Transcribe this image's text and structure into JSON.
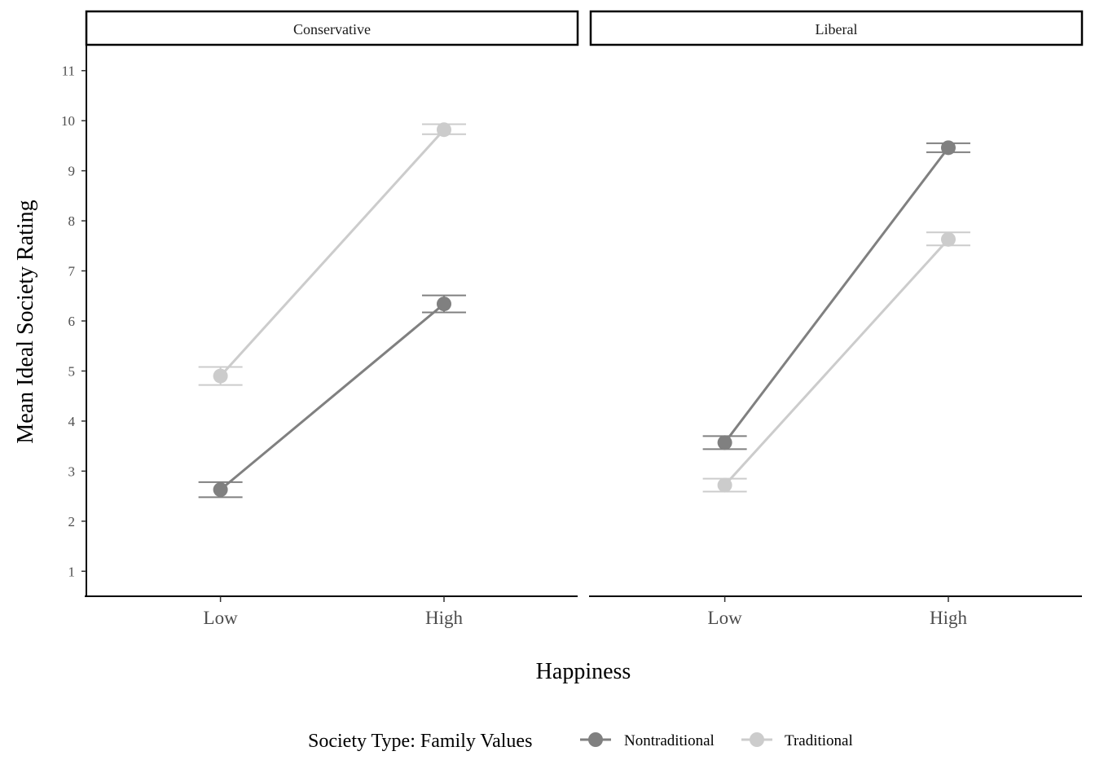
{
  "chart_data": {
    "type": "line",
    "xlabel": "Happiness",
    "ylabel": "Mean Ideal Society Rating",
    "categories": [
      "Low",
      "High"
    ],
    "ylim": [
      0.5,
      11.5
    ],
    "yticks": [
      1,
      2,
      3,
      4,
      5,
      6,
      7,
      8,
      9,
      10,
      11
    ],
    "grid": false,
    "legend": {
      "title": "Society Type: Family Values",
      "placement": "bottom"
    },
    "series_styles": [
      {
        "name": "Nontraditional",
        "color": "#808080"
      },
      {
        "name": "Traditional",
        "color": "#cccccc"
      }
    ],
    "panels": [
      {
        "name": "Conservative",
        "series": [
          {
            "name": "Nontraditional",
            "values": [
              2.63,
              6.34
            ],
            "error_low": [
              2.48,
              6.17
            ],
            "error_high": [
              2.78,
              6.51
            ]
          },
          {
            "name": "Traditional",
            "values": [
              4.9,
              9.82
            ],
            "error_low": [
              4.72,
              9.73
            ],
            "error_high": [
              5.08,
              9.93
            ]
          }
        ]
      },
      {
        "name": "Liberal",
        "series": [
          {
            "name": "Nontraditional",
            "values": [
              3.57,
              9.46
            ],
            "error_low": [
              3.44,
              9.37
            ],
            "error_high": [
              3.7,
              9.55
            ]
          },
          {
            "name": "Traditional",
            "values": [
              2.72,
              7.63
            ],
            "error_low": [
              2.59,
              7.51
            ],
            "error_high": [
              2.85,
              7.77
            ]
          }
        ]
      }
    ]
  }
}
